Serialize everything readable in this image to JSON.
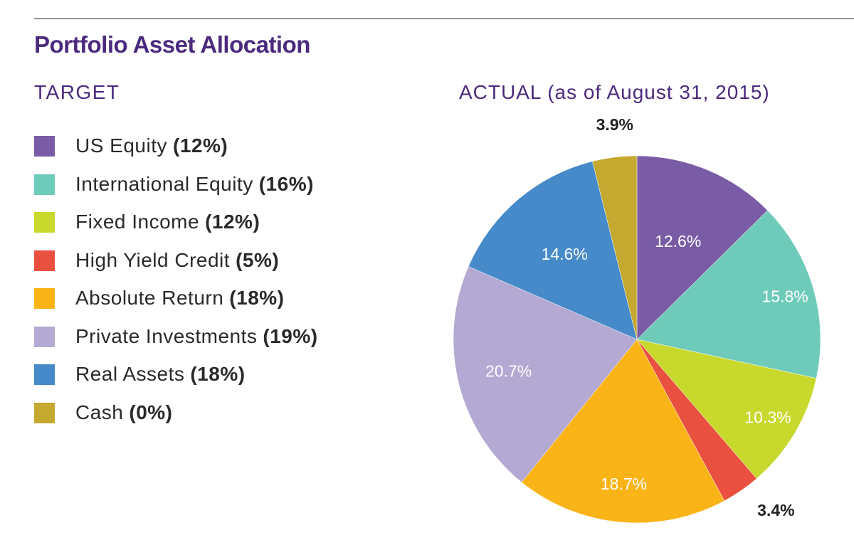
{
  "title": "Portfolio Asset Allocation",
  "target_heading": "TARGET",
  "actual_heading": "ACTUAL (as of August 31, 2015)",
  "legend": [
    {
      "name": "US Equity",
      "value": "(12%)",
      "color": "#7a5ca6"
    },
    {
      "name": "International Equity",
      "value": "(16%)",
      "color": "#6fcbb9"
    },
    {
      "name": "Fixed Income",
      "value": "(12%)",
      "color": "#c9d82d"
    },
    {
      "name": "High Yield Credit",
      "value": "(5%)",
      "color": "#e9503f"
    },
    {
      "name": "Absolute Return",
      "value": "(18%)",
      "color": "#fab417"
    },
    {
      "name": "Private Investments",
      "value": "(19%)",
      "color": "#b3a9d2"
    },
    {
      "name": "Real Assets",
      "value": "(18%)",
      "color": "#468ac9"
    },
    {
      "name": "Cash",
      "value": "(0%)",
      "color": "#c4a830"
    }
  ],
  "chart_data": {
    "type": "pie",
    "title": "ACTUAL (as of August 31, 2015)",
    "categories": [
      "US Equity",
      "International Equity",
      "Fixed Income",
      "High Yield Credit",
      "Absolute Return",
      "Private Investments",
      "Real Assets",
      "Cash"
    ],
    "values": [
      12.6,
      15.8,
      10.3,
      3.4,
      18.7,
      20.7,
      14.6,
      3.9
    ],
    "labels": [
      "12.6%",
      "15.8%",
      "10.3%",
      "3.4%",
      "18.7%",
      "20.7%",
      "14.6%",
      "3.9%"
    ],
    "target_values": [
      12,
      16,
      12,
      5,
      18,
      19,
      18,
      0
    ],
    "colors": [
      "#7a5ca6",
      "#6fcbb9",
      "#c9d82d",
      "#e9503f",
      "#fab417",
      "#b3a9d2",
      "#468ac9",
      "#c4a830"
    ],
    "start_angle": "12 o'clock",
    "direction": "clockwise"
  }
}
